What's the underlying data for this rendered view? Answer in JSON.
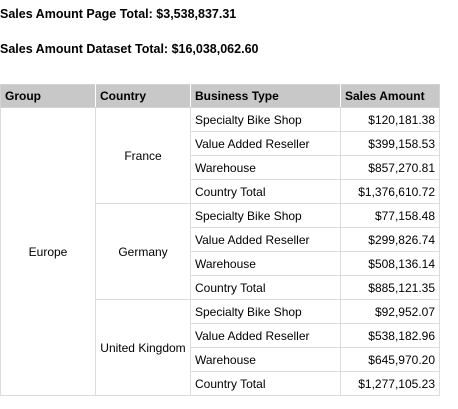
{
  "summary": {
    "page_total_label": "Sales Amount Page Total:",
    "page_total_value": "$3,538,837.31",
    "dataset_total_label": "Sales Amount Dataset Total:",
    "dataset_total_value": "$16,038,062.60"
  },
  "table": {
    "headers": [
      "Group",
      "Country",
      "Business Type",
      "Sales Amount"
    ],
    "group": "Europe",
    "countries": [
      {
        "name": "France",
        "rows": [
          {
            "type": "Specialty Bike Shop",
            "amount": "$120,181.38"
          },
          {
            "type": "Value Added Reseller",
            "amount": "$399,158.53"
          },
          {
            "type": "Warehouse",
            "amount": "$857,270.81"
          },
          {
            "type": "Country Total",
            "amount": "$1,376,610.72"
          }
        ]
      },
      {
        "name": "Germany",
        "rows": [
          {
            "type": "Specialty Bike Shop",
            "amount": "$77,158.48"
          },
          {
            "type": "Value Added Reseller",
            "amount": "$299,826.74"
          },
          {
            "type": "Warehouse",
            "amount": "$508,136.14"
          },
          {
            "type": "Country Total",
            "amount": "$885,121.35"
          }
        ]
      },
      {
        "name": "United Kingdom",
        "rows": [
          {
            "type": "Specialty Bike Shop",
            "amount": "$92,952.07"
          },
          {
            "type": "Value Added Reseller",
            "amount": "$538,182.96"
          },
          {
            "type": "Warehouse",
            "amount": "$645,970.20"
          },
          {
            "type": "Country Total",
            "amount": "$1,277,105.23"
          }
        ]
      }
    ]
  }
}
